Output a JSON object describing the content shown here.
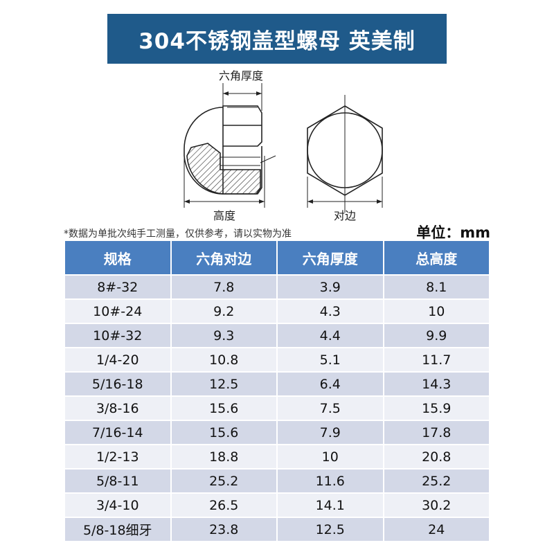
{
  "title": "304不锈钢盖型螺母 英美制",
  "diagram": {
    "hex_thickness_label": "六角厚度",
    "height_label": "高度",
    "across_flats_label": "对边"
  },
  "note": "*数据为单批次纯手工测量，仅供参考，请以实物为准",
  "unit": "单位：mm",
  "table": {
    "headers": [
      "规格",
      "六角对边",
      "六角厚度",
      "总高度"
    ],
    "rows": [
      [
        "8#-32",
        "7.8",
        "3.9",
        "8.1"
      ],
      [
        "10#-24",
        "9.2",
        "4.3",
        "10"
      ],
      [
        "10#-32",
        "9.3",
        "4.4",
        "9.9"
      ],
      [
        "1/4-20",
        "10.8",
        "5.1",
        "11.7"
      ],
      [
        "5/16-18",
        "12.5",
        "6.4",
        "14.3"
      ],
      [
        "3/8-16",
        "15.6",
        "7.5",
        "15.9"
      ],
      [
        "7/16-14",
        "15.6",
        "7.9",
        "17.8"
      ],
      [
        "1/2-13",
        "18.8",
        "10",
        "20.8"
      ],
      [
        "5/8-11",
        "25.2",
        "11.6",
        "25.2"
      ],
      [
        "3/4-10",
        "26.5",
        "14.1",
        "30.2"
      ],
      [
        "5/8-18细牙",
        "23.8",
        "12.5",
        "24"
      ]
    ]
  },
  "colors": {
    "banner": "#1f5a8a",
    "header": "#4a7fc0",
    "row_odd": "#d3d8e7",
    "row_even": "#eef0f6"
  }
}
